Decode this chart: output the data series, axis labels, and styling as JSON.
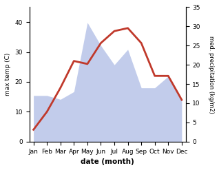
{
  "months": [
    "Jan",
    "Feb",
    "Mar",
    "Apr",
    "May",
    "Jun",
    "Jul",
    "Aug",
    "Sep",
    "Oct",
    "Nov",
    "Dec"
  ],
  "temperature": [
    4,
    10,
    18,
    27,
    26,
    33,
    37,
    38,
    33,
    22,
    22,
    14
  ],
  "precipitation": [
    12,
    12,
    11,
    13,
    31,
    25,
    20,
    24,
    14,
    14,
    17,
    11
  ],
  "temp_color": "#c0392b",
  "precip_fill_color": "#b8c4e8",
  "temp_ylim": [
    0,
    45
  ],
  "precip_ylim": [
    0,
    35
  ],
  "xlabel": "date (month)",
  "ylabel_left": "max temp (C)",
  "ylabel_right": "med. precipitation (kg/m2)",
  "temp_yticks": [
    0,
    10,
    20,
    30,
    40
  ],
  "precip_yticks": [
    0,
    5,
    10,
    15,
    20,
    25,
    30,
    35
  ],
  "bg_color": "#ffffff"
}
